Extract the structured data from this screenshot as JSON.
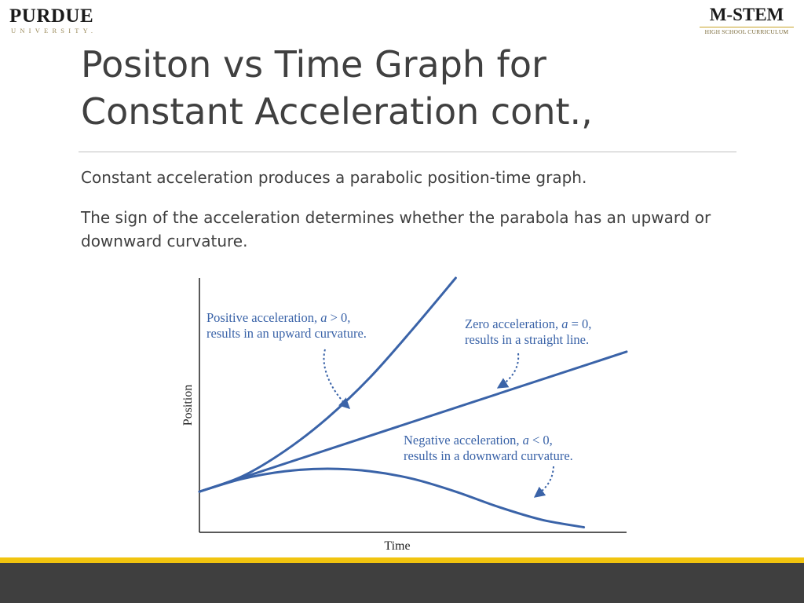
{
  "logos": {
    "left": {
      "name": "PURDUE",
      "subtitle": "UNIVERSITY."
    },
    "right": {
      "name": "M-STEM",
      "subtitle": "HIGH SCHOOL CURRICULUM"
    }
  },
  "slide": {
    "title_line1": "Positon vs Time Graph for",
    "title_line2": "Constant Acceleration cont.,",
    "bullets": [
      "Constant acceleration produces a parabolic position-time graph.",
      "The sign of the acceleration determines whether the parabola has an upward or downward curvature."
    ]
  },
  "colors": {
    "curve": "#3a63a8",
    "annotation_text": "#3a63a8",
    "accent_bar": "#f1c40f",
    "footer": "#3f3f3f"
  },
  "chart_data": {
    "type": "line",
    "xlabel": "Time",
    "ylabel": "Position",
    "xlim": [
      0,
      1
    ],
    "ylim": [
      0,
      1
    ],
    "grid": false,
    "series": [
      {
        "label": "Positive acceleration",
        "x": [
          0,
          0.1,
          0.2,
          0.3,
          0.4,
          0.5,
          0.6
        ],
        "values": [
          0.16,
          0.22,
          0.32,
          0.45,
          0.61,
          0.8,
          1.0
        ]
      },
      {
        "label": "Zero acceleration",
        "x": [
          0,
          1.0
        ],
        "values": [
          0.16,
          0.71
        ]
      },
      {
        "label": "Negative acceleration",
        "x": [
          0,
          0.1,
          0.2,
          0.3,
          0.4,
          0.5,
          0.6,
          0.7,
          0.8,
          0.9
        ],
        "values": [
          0.16,
          0.21,
          0.24,
          0.25,
          0.24,
          0.21,
          0.16,
          0.1,
          0.05,
          0.02
        ]
      }
    ],
    "annotations": [
      {
        "line1": "Positive acceleration, ",
        "math1": "a",
        "rel1": " > 0,",
        "line2": "results in an upward curvature."
      },
      {
        "line1": "Zero acceleration, ",
        "math1": "a",
        "rel1": " = 0,",
        "line2": "results in a straight line."
      },
      {
        "line1": "Negative acceleration, ",
        "math1": "a",
        "rel1": " < 0,",
        "line2": "results in a downward curvature."
      }
    ]
  }
}
